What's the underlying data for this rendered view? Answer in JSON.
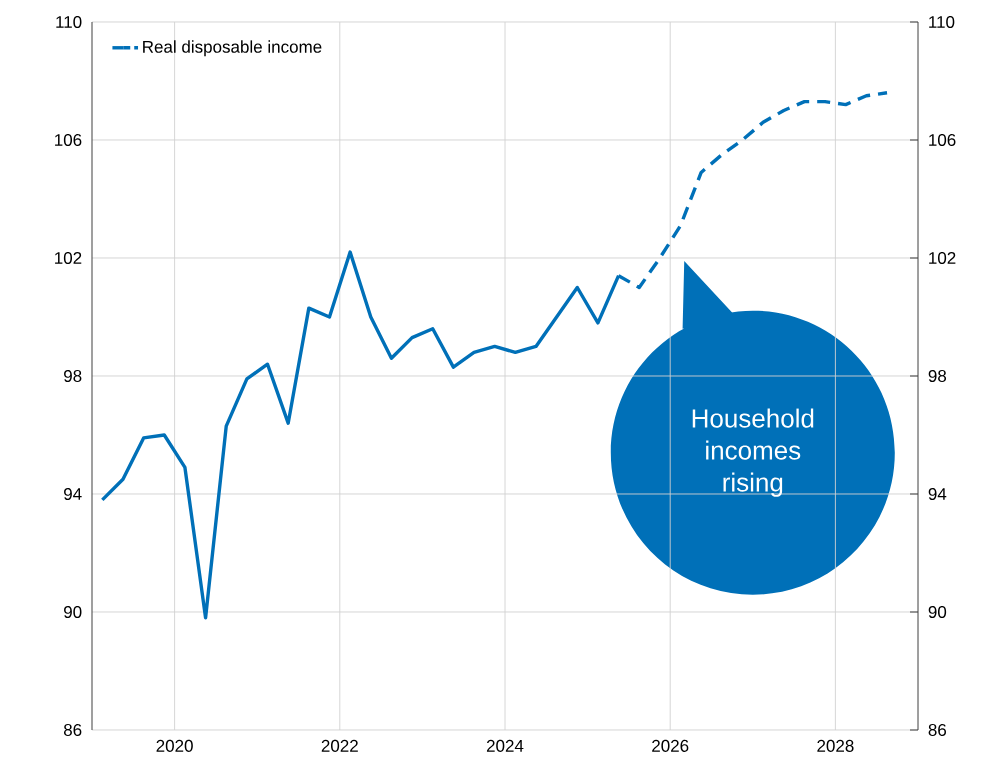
{
  "chart_data": {
    "type": "line",
    "x": [
      2019.125,
      2019.375,
      2019.625,
      2019.875,
      2020.125,
      2020.375,
      2020.625,
      2020.875,
      2021.125,
      2021.375,
      2021.625,
      2021.875,
      2022.125,
      2022.375,
      2022.625,
      2022.875,
      2023.125,
      2023.375,
      2023.625,
      2023.875,
      2024.125,
      2024.375,
      2024.625,
      2024.875,
      2025.125,
      2025.375
    ],
    "series": [
      {
        "name": "Real disposable income",
        "color": "#0070b8",
        "line_style": "solid",
        "values": [
          93.8,
          94.5,
          95.9,
          96.0,
          94.9,
          89.8,
          96.3,
          97.9,
          98.4,
          96.4,
          100.3,
          100.0,
          102.2,
          100.0,
          98.6,
          99.3,
          99.6,
          98.3,
          98.8,
          99.0,
          98.8,
          99.0,
          100.0,
          101.0,
          99.8,
          101.4
        ]
      },
      {
        "color": "#0070b8",
        "line_style": "dashed",
        "x": [
          2025.375,
          2025.625,
          2025.875,
          2026.125,
          2026.375,
          2026.625,
          2026.875,
          2027.125,
          2027.375,
          2027.625,
          2027.875,
          2028.125,
          2028.375,
          2028.625
        ],
        "values": [
          101.4,
          101.0,
          102.0,
          103.1,
          104.9,
          105.5,
          106.0,
          106.6,
          107.0,
          107.3,
          107.3,
          107.2,
          107.5,
          107.6
        ]
      }
    ],
    "xlim": [
      2019,
      2029
    ],
    "xticks": [
      2020,
      2022,
      2024,
      2026,
      2028
    ],
    "ylim": [
      86,
      110
    ],
    "yticks": [
      86,
      90,
      94,
      98,
      102,
      106,
      110
    ],
    "y2lim": [
      86,
      110
    ],
    "y2ticks": [
      86,
      90,
      94,
      98,
      102,
      106,
      110
    ],
    "grid": true,
    "legend": "top left",
    "annotations": [
      "Household incomes rising"
    ]
  }
}
